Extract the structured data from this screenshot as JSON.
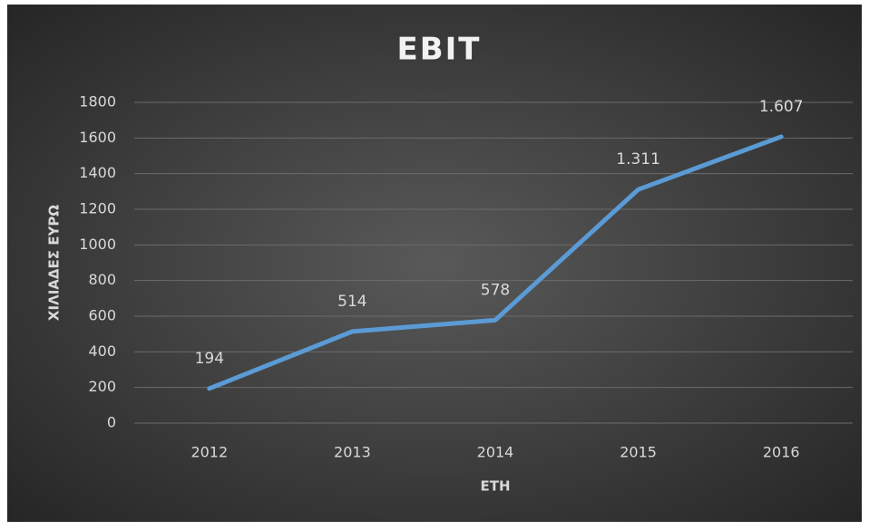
{
  "chart_data": {
    "type": "line",
    "title": "EBIT",
    "x_label": "ΕΤΗ",
    "y_label": "ΧΙΛΙΑΔΕΣ ΕΥΡΩ",
    "categories": [
      "2012",
      "2013",
      "2014",
      "2015",
      "2016"
    ],
    "values": [
      194,
      514,
      578,
      1311,
      1607
    ],
    "value_labels": [
      "194",
      "514",
      "578",
      "1.311",
      "1.607"
    ],
    "color": "#5b9bd5",
    "ylim": [
      0,
      1800
    ],
    "yticks": [
      0,
      200,
      400,
      600,
      800,
      1000,
      1200,
      1400,
      1600,
      1800
    ],
    "grid": true
  }
}
